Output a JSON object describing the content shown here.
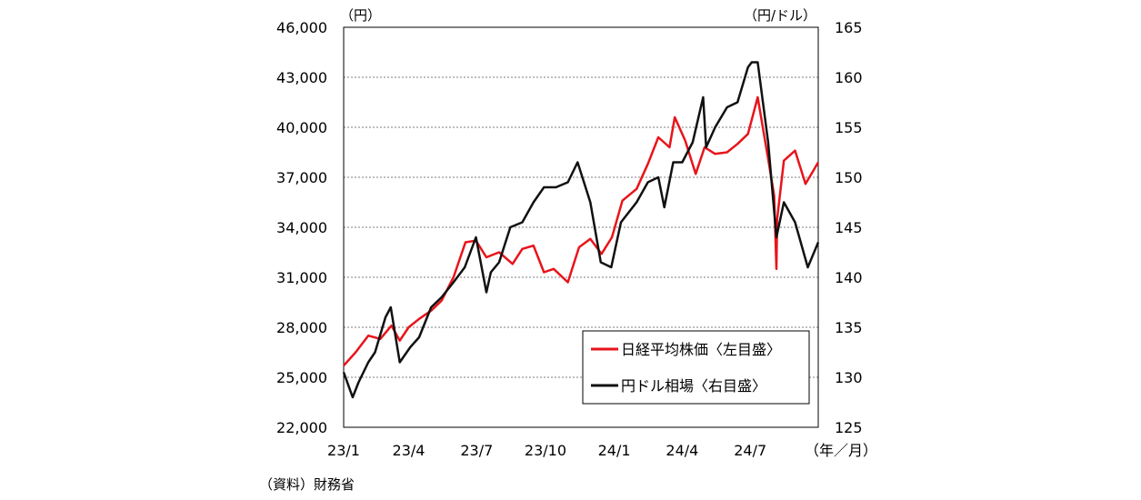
{
  "chart_data": {
    "type": "line",
    "left_unit": "（円）",
    "right_unit": "（円/ドル）",
    "x_unit": "（年／月）",
    "x_tick_labels": [
      "23/1",
      "23/4",
      "23/7",
      "23/10",
      "24/1",
      "24/4",
      "24/7"
    ],
    "y_left": {
      "min": 22000,
      "max": 46000,
      "step": 3000,
      "tick_labels": [
        "22,000",
        "25,000",
        "28,000",
        "31,000",
        "34,000",
        "37,000",
        "40,000",
        "43,000",
        "46,000"
      ]
    },
    "y_right": {
      "min": 125,
      "max": 165,
      "step": 5,
      "tick_labels": [
        "125",
        "130",
        "135",
        "140",
        "145",
        "150",
        "155",
        "160",
        "165"
      ]
    },
    "grid": "horizontal dotted",
    "legend_position": "lower-right",
    "series": [
      {
        "name": "日経平均株価〈左目盛〉",
        "axis": "left",
        "color": "#e8141b",
        "x": [
          "2023-01-04",
          "2023-01-20",
          "2023-02-06",
          "2023-02-22",
          "2023-03-09",
          "2023-03-20",
          "2023-04-01",
          "2023-04-15",
          "2023-05-01",
          "2023-05-15",
          "2023-05-31",
          "2023-06-16",
          "2023-06-30",
          "2023-07-14",
          "2023-07-31",
          "2023-08-18",
          "2023-08-31",
          "2023-09-15",
          "2023-09-29",
          "2023-10-12",
          "2023-10-31",
          "2023-11-15",
          "2023-11-30",
          "2023-12-15",
          "2023-12-29",
          "2024-01-12",
          "2024-01-31",
          "2024-02-15",
          "2024-02-29",
          "2024-03-15",
          "2024-03-22",
          "2024-04-05",
          "2024-04-19",
          "2024-05-01",
          "2024-05-15",
          "2024-05-31",
          "2024-06-14",
          "2024-06-28",
          "2024-07-11",
          "2024-07-25",
          "2024-08-02",
          "2024-08-05",
          "2024-08-06",
          "2024-08-15",
          "2024-08-30",
          "2024-09-13",
          "2024-09-30"
        ],
        "values": [
          25700,
          26500,
          27500,
          27300,
          28100,
          27200,
          28000,
          28500,
          29000,
          29600,
          31000,
          33100,
          33200,
          32200,
          32500,
          31800,
          32700,
          32900,
          31300,
          31500,
          30700,
          32800,
          33300,
          32400,
          33400,
          35600,
          36300,
          37800,
          39400,
          38800,
          40600,
          39200,
          37200,
          38800,
          38400,
          38500,
          39000,
          39600,
          41800,
          38100,
          35900,
          31500,
          34500,
          38000,
          38600,
          36600,
          37900
        ]
      },
      {
        "name": "円ドル相場〈右目盛〉",
        "axis": "right",
        "color": "#111111",
        "x": [
          "2023-01-04",
          "2023-01-16",
          "2023-01-24",
          "2023-02-06",
          "2023-02-15",
          "2023-03-01",
          "2023-03-08",
          "2023-03-20",
          "2023-04-03",
          "2023-04-15",
          "2023-05-01",
          "2023-05-15",
          "2023-05-31",
          "2023-06-15",
          "2023-06-30",
          "2023-07-14",
          "2023-07-20",
          "2023-07-31",
          "2023-08-15",
          "2023-08-31",
          "2023-09-15",
          "2023-09-29",
          "2023-10-15",
          "2023-10-31",
          "2023-11-13",
          "2023-11-30",
          "2023-12-14",
          "2023-12-28",
          "2024-01-10",
          "2024-01-31",
          "2024-02-15",
          "2024-02-29",
          "2024-03-08",
          "2024-03-20",
          "2024-04-01",
          "2024-04-15",
          "2024-04-29",
          "2024-05-03",
          "2024-05-15",
          "2024-05-31",
          "2024-06-14",
          "2024-06-28",
          "2024-07-03",
          "2024-07-11",
          "2024-07-25",
          "2024-08-05",
          "2024-08-15",
          "2024-08-30",
          "2024-09-16",
          "2024-09-30"
        ],
        "values": [
          130.5,
          128.0,
          129.5,
          131.5,
          132.5,
          136.0,
          137.0,
          131.5,
          133.0,
          134.0,
          137.0,
          138.0,
          139.5,
          141.0,
          144.0,
          138.5,
          140.5,
          141.5,
          145.0,
          145.5,
          147.5,
          149.0,
          149.0,
          149.5,
          151.5,
          147.5,
          141.5,
          141.0,
          145.5,
          147.5,
          149.5,
          150.0,
          147.0,
          151.5,
          151.5,
          153.5,
          158.0,
          153.0,
          155.0,
          157.0,
          157.5,
          161.0,
          161.5,
          161.5,
          153.5,
          144.0,
          147.5,
          145.5,
          141.0,
          143.5
        ]
      }
    ]
  },
  "source_note": "（資料）財務省"
}
